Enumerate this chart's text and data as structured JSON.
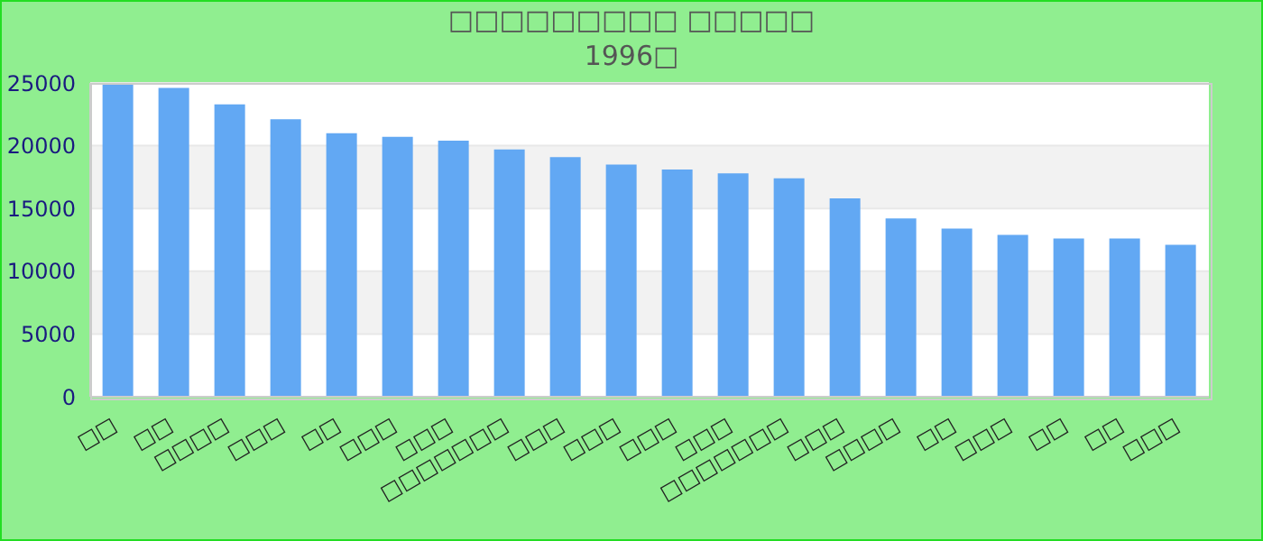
{
  "chart_data": {
    "type": "bar",
    "title": "□□□□□□□□□ □□□□□",
    "subtitle": "1996□",
    "categories": [
      "□□",
      "□□",
      "□□□□",
      "□□□",
      "□□",
      "□□□",
      "□□□",
      "□□□□□□□",
      "□□□",
      "□□□",
      "□□□",
      "□□□",
      "□□□□□□□",
      "□□□",
      "□□□□",
      "□□",
      "□□□",
      "□□",
      "□□",
      "□□□"
    ],
    "values": [
      24900,
      24600,
      23300,
      22100,
      21000,
      20700,
      20400,
      19700,
      19100,
      18500,
      18100,
      17800,
      17400,
      15800,
      14200,
      13400,
      12900,
      12600,
      12600,
      12100
    ],
    "color": "#62a8f3",
    "ylim": [
      0,
      25000
    ],
    "yticks": [
      0,
      5000,
      10000,
      15000,
      20000,
      25000
    ],
    "grid": "y"
  }
}
